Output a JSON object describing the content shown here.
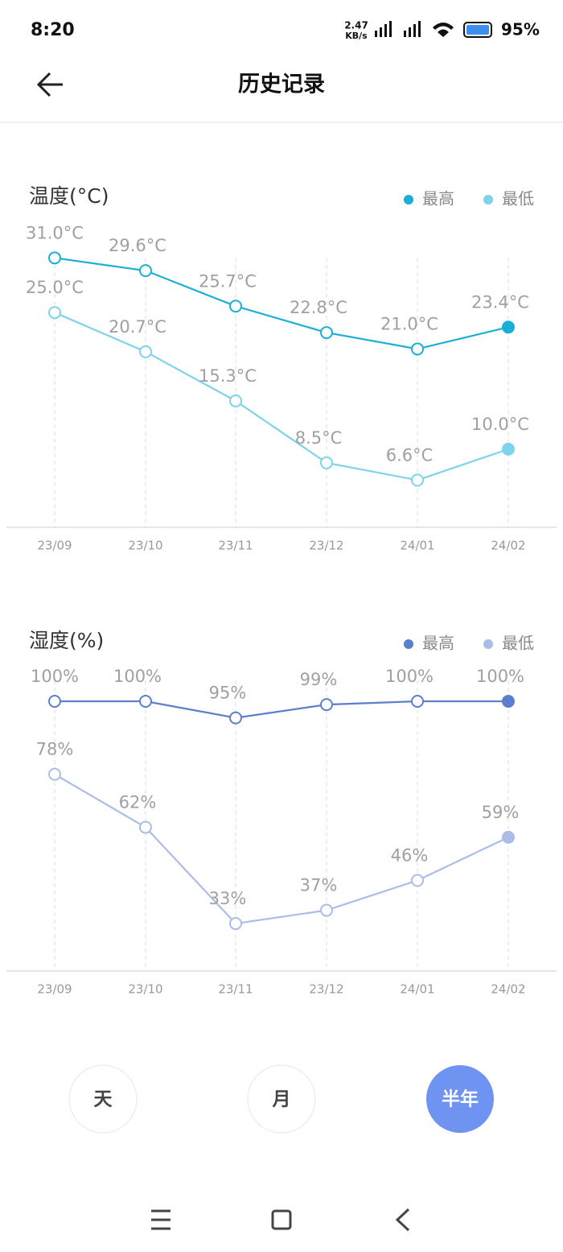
{
  "status_bar": {
    "time": "8:20",
    "speed": "2.47",
    "speed_unit": "KB/s",
    "battery": "95%"
  },
  "header": {
    "title": "历史记录"
  },
  "chart_data": [
    {
      "type": "line",
      "title": "温度(°C)",
      "categories": [
        "23/09",
        "23/10",
        "23/11",
        "23/12",
        "24/01",
        "24/02"
      ],
      "ylim": [
        0,
        32
      ],
      "series": [
        {
          "name": "最高",
          "color": "#1bafd8",
          "values": [
            31.0,
            29.6,
            25.7,
            22.8,
            21.0,
            23.4
          ],
          "value_labels": [
            "31.0°C",
            "29.6°C",
            "25.7°C",
            "22.8°C",
            "21.0°C",
            "23.4°C"
          ]
        },
        {
          "name": "最低",
          "color": "#7dd3ec",
          "values": [
            25.0,
            20.7,
            15.3,
            8.5,
            6.6,
            10.0
          ],
          "value_labels": [
            "25.0°C",
            "20.7°C",
            "15.3°C",
            "8.5°C",
            "6.6°C",
            "10.0°C"
          ]
        }
      ]
    },
    {
      "type": "line",
      "title": "湿度(%)",
      "categories": [
        "23/09",
        "23/10",
        "23/11",
        "23/12",
        "24/01",
        "24/02"
      ],
      "ylim": [
        0,
        100
      ],
      "series": [
        {
          "name": "最高",
          "color": "#5b7fcc",
          "values": [
            100,
            100,
            95,
            99,
            100,
            100
          ],
          "value_labels": [
            "100%",
            "100%",
            "95%",
            "99%",
            "100%",
            "100%"
          ]
        },
        {
          "name": "最低",
          "color": "#a9bde8",
          "values": [
            78,
            62,
            33,
            37,
            46,
            59
          ],
          "value_labels": [
            "78%",
            "62%",
            "33%",
            "37%",
            "46%",
            "59%"
          ]
        }
      ]
    }
  ],
  "buttons": [
    "天",
    "月",
    "半年"
  ]
}
